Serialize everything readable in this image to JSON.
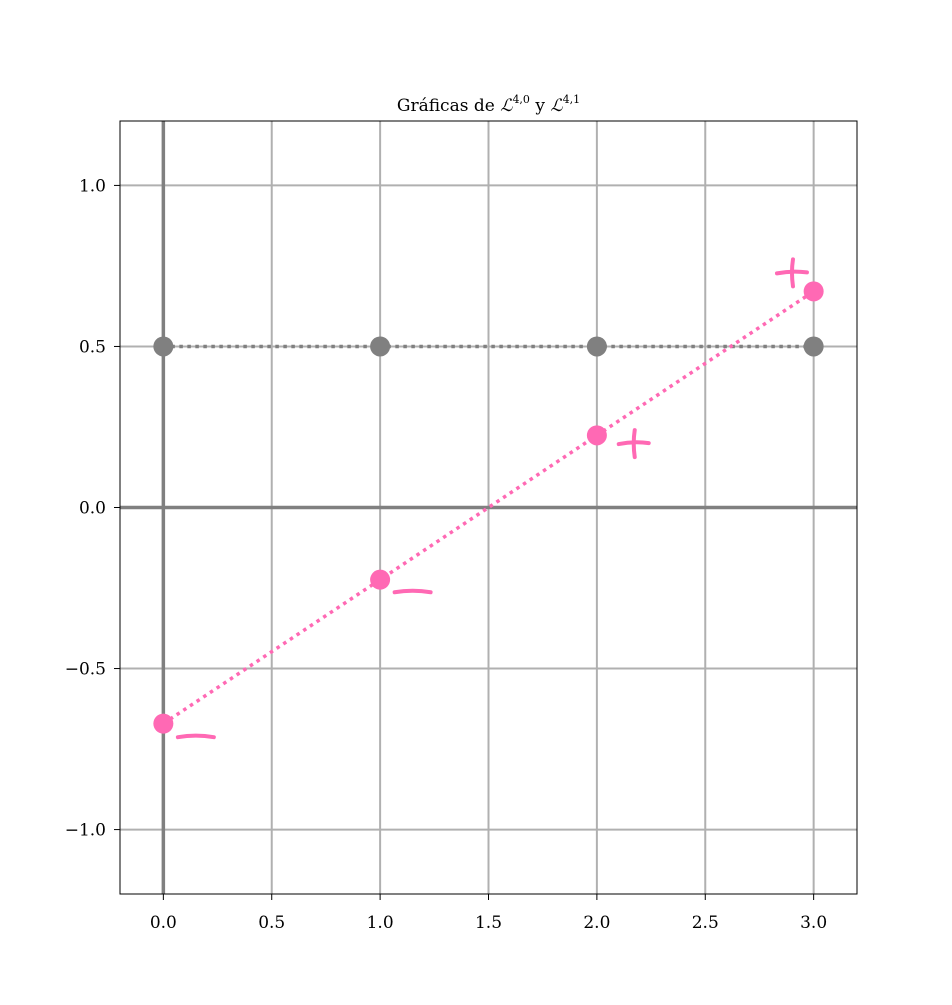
{
  "chart_data": {
    "type": "scatter",
    "title": {
      "prefix": "Gráficas de ",
      "sym1": "ℒ",
      "sup1": "4,0",
      "middle": " y ",
      "sym2": "ℒ",
      "sup2": "4,1"
    },
    "xlabel": "",
    "ylabel": "",
    "xlim": [
      -0.2,
      3.2
    ],
    "ylim": [
      -1.2,
      1.2
    ],
    "x_ticks": [
      0.0,
      0.5,
      1.0,
      1.5,
      2.0,
      2.5,
      3.0
    ],
    "x_tick_labels": [
      "0.0",
      "0.5",
      "1.0",
      "1.5",
      "2.0",
      "2.5",
      "3.0"
    ],
    "y_ticks": [
      1.0,
      0.5,
      0.0,
      -0.5,
      -1.0
    ],
    "y_tick_labels": [
      "1.0",
      "0.5",
      "0.0",
      "−0.5",
      "−1.0"
    ],
    "grid": true,
    "series": [
      {
        "x": [
          0,
          1,
          2,
          3
        ],
        "y": [
          0.5,
          0.5,
          0.5,
          0.5
        ],
        "color": "#808080",
        "line_style": "dotted"
      },
      {
        "x": [
          0,
          1,
          2,
          3
        ],
        "y": [
          -0.671,
          -0.224,
          0.224,
          0.671
        ],
        "color": "#ff69b4",
        "line_style": "dotted"
      }
    ],
    "annotations": [
      {
        "text": "−",
        "x": 0.15,
        "y": -0.71,
        "color": "#ff69b4"
      },
      {
        "text": "−",
        "x": 1.15,
        "y": -0.26,
        "color": "#ff69b4"
      },
      {
        "text": "+",
        "x": 2.17,
        "y": 0.2,
        "color": "#ff69b4"
      },
      {
        "text": "+",
        "x": 2.9,
        "y": 0.73,
        "color": "#ff69b4"
      }
    ]
  }
}
